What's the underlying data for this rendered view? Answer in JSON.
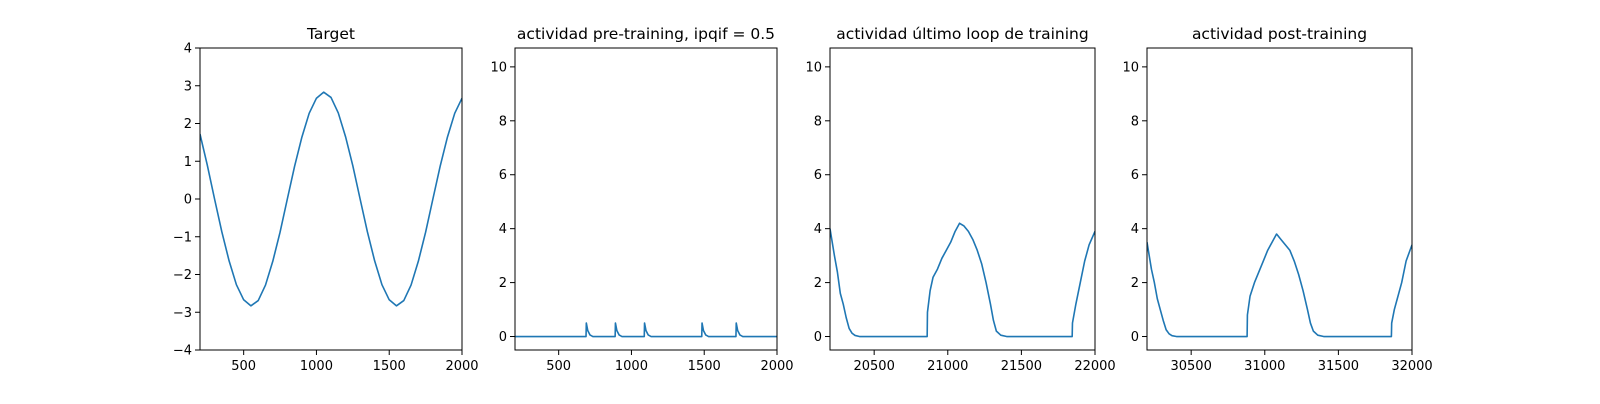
{
  "chart_data": [
    {
      "type": "line",
      "title": "Target",
      "xlim": [
        200,
        2000
      ],
      "ylim": [
        -4,
        4
      ],
      "xticks": [
        500,
        1000,
        1500,
        2000
      ],
      "yticks": [
        -4,
        -3,
        -2,
        -1,
        0,
        1,
        2,
        3,
        4
      ],
      "xtick_labels": [
        "500",
        "1000",
        "1500",
        "2000"
      ],
      "ytick_labels": [
        "−4",
        "−3",
        "−2",
        "−1",
        "0",
        "1",
        "2",
        "3",
        "4"
      ],
      "series": [
        {
          "color": "#1f77b4",
          "x": [
            200,
            250,
            300,
            350,
            400,
            450,
            500,
            550,
            600,
            650,
            700,
            750,
            800,
            850,
            900,
            950,
            1000,
            1050,
            1100,
            1150,
            1200,
            1250,
            1300,
            1350,
            1400,
            1450,
            1500,
            1550,
            1600,
            1650,
            1700,
            1750,
            1800,
            1850,
            1900,
            1950,
            2000
          ],
          "y": [
            1.72,
            0.9,
            0.0,
            -0.87,
            -1.64,
            -2.27,
            -2.67,
            -2.83,
            -2.69,
            -2.28,
            -1.65,
            -0.88,
            0.0,
            0.87,
            1.64,
            2.27,
            2.67,
            2.83,
            2.69,
            2.28,
            1.65,
            0.88,
            0.0,
            -0.87,
            -1.64,
            -2.27,
            -2.67,
            -2.83,
            -2.69,
            -2.28,
            -1.65,
            -0.88,
            0.0,
            0.87,
            1.64,
            2.27,
            2.67
          ]
        }
      ]
    },
    {
      "type": "line",
      "title": "actividad pre-training, ipqif = 0.5",
      "xlim": [
        200,
        2000
      ],
      "ylim": [
        -0.5,
        10.7
      ],
      "xticks": [
        500,
        1000,
        1500,
        2000
      ],
      "yticks": [
        0,
        2,
        4,
        6,
        8,
        10
      ],
      "xtick_labels": [
        "500",
        "1000",
        "1500",
        "2000"
      ],
      "ytick_labels": [
        "0",
        "2",
        "4",
        "6",
        "8",
        "10"
      ],
      "series": [
        {
          "color": "#1f77b4",
          "x": [
            200,
            688,
            690,
            700,
            715,
            735,
            888,
            890,
            900,
            915,
            935,
            1088,
            1090,
            1100,
            1115,
            1135,
            1483,
            1485,
            1495,
            1510,
            1530,
            1718,
            1720,
            1730,
            1745,
            1765,
            2000
          ],
          "y": [
            0,
            0,
            0.5,
            0.22,
            0.06,
            0,
            0,
            0.5,
            0.22,
            0.06,
            0,
            0,
            0.5,
            0.22,
            0.06,
            0,
            0,
            0.5,
            0.22,
            0.06,
            0,
            0,
            0.5,
            0.22,
            0.06,
            0,
            0
          ]
        }
      ]
    },
    {
      "type": "line",
      "title": "actividad último loop de training",
      "xlim": [
        20200,
        22000
      ],
      "ylim": [
        -0.5,
        10.7
      ],
      "xticks": [
        20500,
        21000,
        21500,
        22000
      ],
      "yticks": [
        0,
        2,
        4,
        6,
        8,
        10
      ],
      "xtick_labels": [
        "20500",
        "21000",
        "21500",
        "22000"
      ],
      "ytick_labels": [
        "0",
        "2",
        "4",
        "6",
        "8",
        "10"
      ],
      "series": [
        {
          "color": "#1f77b4",
          "x": [
            20200,
            20215,
            20230,
            20250,
            20270,
            20290,
            20310,
            20330,
            20350,
            20370,
            20400,
            20450,
            20500,
            20860,
            20862,
            20880,
            20900,
            20930,
            20960,
            20990,
            21020,
            21050,
            21080,
            21110,
            21140,
            21170,
            21200,
            21230,
            21260,
            21290,
            21310,
            21330,
            21360,
            21400,
            21845,
            21847,
            21870,
            21900,
            21930,
            21960,
            22000
          ],
          "y": [
            4.0,
            3.5,
            3.0,
            2.4,
            1.6,
            1.2,
            0.7,
            0.3,
            0.12,
            0.04,
            0.0,
            0.0,
            0.0,
            0.0,
            0.9,
            1.7,
            2.2,
            2.5,
            2.9,
            3.2,
            3.5,
            3.9,
            4.2,
            4.1,
            3.9,
            3.6,
            3.2,
            2.7,
            2.0,
            1.2,
            0.6,
            0.2,
            0.05,
            0.0,
            0.0,
            0.5,
            1.2,
            2.0,
            2.8,
            3.4,
            3.9
          ]
        }
      ]
    },
    {
      "type": "line",
      "title": "actividad post-training",
      "xlim": [
        30200,
        32000
      ],
      "ylim": [
        -0.5,
        10.7
      ],
      "xticks": [
        30500,
        31000,
        31500,
        32000
      ],
      "yticks": [
        0,
        2,
        4,
        6,
        8,
        10
      ],
      "xtick_labels": [
        "30500",
        "31000",
        "31500",
        "32000"
      ],
      "ytick_labels": [
        "0",
        "2",
        "4",
        "6",
        "8",
        "10"
      ],
      "series": [
        {
          "color": "#1f77b4",
          "x": [
            30200,
            30215,
            30230,
            30250,
            30270,
            30290,
            30310,
            30330,
            30350,
            30370,
            30400,
            30450,
            30500,
            30880,
            30882,
            30900,
            30930,
            30960,
            30990,
            31020,
            31050,
            31080,
            31110,
            31140,
            31170,
            31200,
            31230,
            31260,
            31290,
            31310,
            31330,
            31360,
            31400,
            31860,
            31862,
            31880,
            31900,
            31930,
            31960,
            32000
          ],
          "y": [
            3.5,
            3.0,
            2.5,
            2.0,
            1.4,
            1.0,
            0.6,
            0.25,
            0.1,
            0.03,
            0.0,
            0.0,
            0.0,
            0.0,
            0.8,
            1.5,
            2.0,
            2.4,
            2.8,
            3.2,
            3.5,
            3.8,
            3.6,
            3.4,
            3.2,
            2.8,
            2.3,
            1.7,
            1.0,
            0.5,
            0.2,
            0.05,
            0.0,
            0.0,
            0.5,
            1.0,
            1.4,
            2.0,
            2.8,
            3.4
          ]
        }
      ]
    }
  ]
}
